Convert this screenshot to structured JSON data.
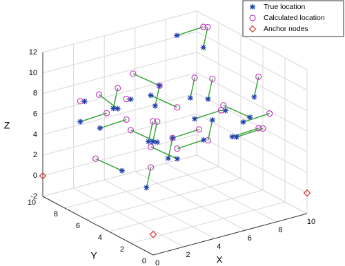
{
  "chart_data": {
    "type": "scatter3d",
    "xlabel": "X",
    "ylabel": "Y",
    "zlabel": "Z",
    "xlim": [
      0,
      10
    ],
    "ylim": [
      0,
      10
    ],
    "zlim": [
      -2,
      12
    ],
    "xticks": [
      0,
      2,
      4,
      6,
      8,
      10
    ],
    "yticks": [
      0,
      2,
      4,
      6,
      8,
      10
    ],
    "zticks": [
      -2,
      0,
      2,
      4,
      6,
      8,
      10,
      12
    ],
    "grid": true,
    "legend": "upper right",
    "link_color": "#3aa63a",
    "series": [
      {
        "name": "True location",
        "marker": "asterisk",
        "color": "#1f3fb0",
        "x": [
          1,
          2,
          3,
          4,
          5,
          6,
          7,
          8,
          9,
          2,
          3,
          5,
          6,
          8,
          9,
          1,
          4,
          7,
          3,
          6,
          8,
          2,
          5,
          9,
          4,
          7,
          1,
          6,
          3,
          8
        ],
        "y": [
          8,
          6,
          9,
          5,
          7,
          3,
          8,
          2,
          6,
          3,
          7,
          9,
          5,
          4,
          8,
          2,
          1,
          6,
          4,
          8,
          3,
          9,
          2,
          5,
          6,
          1,
          5,
          7,
          2,
          9
        ],
        "z": [
          6,
          8,
          4,
          10,
          3,
          7,
          2,
          9,
          5,
          11,
          1,
          6,
          8,
          4,
          10,
          3,
          7,
          5,
          9,
          2,
          6,
          7,
          10,
          3,
          4,
          8,
          9,
          1,
          5,
          11
        ]
      },
      {
        "name": "Calculated location",
        "marker": "circle",
        "color": "#c040c0",
        "x": [
          2,
          1.5,
          4,
          3,
          6,
          5,
          8,
          9,
          8,
          3,
          2,
          4,
          7,
          9,
          10,
          2,
          3,
          8,
          4,
          5,
          9,
          1,
          6,
          10,
          5,
          6,
          2,
          7,
          2,
          9
        ],
        "y": [
          7,
          7,
          8,
          6,
          8,
          2,
          7,
          3,
          5,
          2,
          8,
          8,
          6,
          3,
          9,
          3,
          2,
          5,
          5,
          9,
          2,
          8,
          3,
          4,
          7,
          2,
          6,
          8,
          3,
          8
        ],
        "z": [
          7,
          9,
          5,
          11,
          4,
          6,
          3,
          10,
          6,
          10,
          2,
          7,
          9,
          5,
          11,
          4,
          6,
          6,
          10,
          3,
          7,
          8,
          11,
          4,
          5,
          9,
          10,
          2,
          6,
          12
        ]
      },
      {
        "name": "Anchor nodes",
        "marker": "diamond",
        "color": "#e03030",
        "x": [
          0,
          0,
          10
        ],
        "y": [
          10,
          0,
          0
        ],
        "z": [
          0,
          0,
          0
        ]
      }
    ]
  }
}
